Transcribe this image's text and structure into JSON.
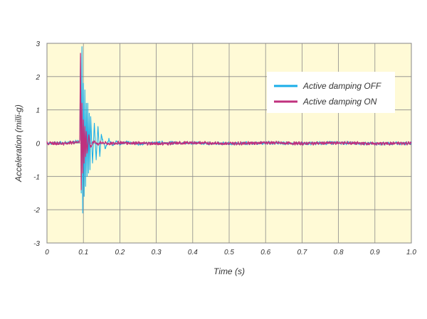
{
  "chart_data": {
    "type": "line",
    "title": "",
    "xlabel": "Time (s)",
    "ylabel": "Acceleration (milli-g)",
    "xlim": [
      0,
      1.0
    ],
    "ylim": [
      -3,
      3
    ],
    "x_ticks": [
      "0",
      "0.1",
      "0.2",
      "0.3",
      "0.4",
      "0.5",
      "0.6",
      "0.7",
      "0.8",
      "0.9",
      "1.0"
    ],
    "y_ticks": [
      "3",
      "2",
      "1",
      "0",
      "-1",
      "-2",
      "-3"
    ],
    "grid": true,
    "legend_position": "top-right",
    "background_color": "#fffad6",
    "series": [
      {
        "name": "Active damping OFF",
        "color": "#1aaee8",
        "x": [
          0,
          0.05,
          0.09,
          0.092,
          0.094,
          0.096,
          0.098,
          0.1,
          0.102,
          0.104,
          0.106,
          0.108,
          0.11,
          0.112,
          0.114,
          0.116,
          0.118,
          0.12,
          0.125,
          0.13,
          0.135,
          0.14,
          0.145,
          0.15,
          0.16,
          0.17,
          0.18,
          0.19,
          0.2,
          0.22,
          0.25,
          0.3,
          0.4,
          0.5,
          0.6,
          0.7,
          0.8,
          0.9,
          1.0
        ],
        "y": [
          0,
          0.02,
          0.1,
          2.6,
          -1.5,
          2.9,
          -2.1,
          1.8,
          -1.6,
          1.6,
          -1.3,
          1.2,
          -1.0,
          1.2,
          -0.9,
          0.9,
          -0.8,
          0.8,
          -0.6,
          0.6,
          -0.5,
          0.5,
          -0.4,
          0.4,
          -0.3,
          0.25,
          -0.15,
          0.12,
          -0.1,
          0.06,
          -0.04,
          0.03,
          0.02,
          -0.03,
          0.02,
          -0.02,
          0.02,
          -0.03,
          0.0
        ]
      },
      {
        "name": "Active damping ON",
        "color": "#c0317e",
        "x": [
          0,
          0.05,
          0.09,
          0.092,
          0.094,
          0.096,
          0.098,
          0.1,
          0.102,
          0.104,
          0.106,
          0.108,
          0.11,
          0.115,
          0.12,
          0.13,
          0.14,
          0.15,
          0.17,
          0.2,
          0.3,
          0.4,
          0.5,
          0.6,
          0.7,
          0.8,
          0.9,
          1.0
        ],
        "y": [
          0,
          -0.02,
          0.1,
          2.7,
          -1.4,
          1.2,
          -0.9,
          0.7,
          -0.6,
          0.5,
          -0.4,
          0.35,
          -0.3,
          0.25,
          -0.2,
          0.12,
          -0.08,
          0.05,
          -0.04,
          0.03,
          -0.03,
          0.02,
          -0.02,
          0.03,
          -0.02,
          0.02,
          -0.03,
          0.0
        ]
      }
    ]
  }
}
